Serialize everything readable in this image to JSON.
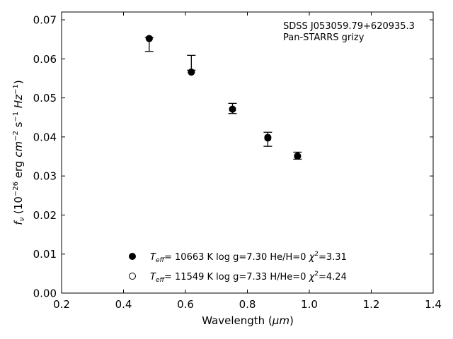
{
  "chart_data": {
    "type": "scatter",
    "annotation_lines": [
      "SDSS J053059.79+620935.3",
      "Pan-STARRS grizy"
    ],
    "xlabel": {
      "main": "Wavelength (",
      "unit": "μm",
      "close": ")"
    },
    "ylabel": {
      "main": "f",
      "sub": "ν",
      "rest": " (10",
      "exp1": "−26",
      "mid": " erg ",
      "cm": "cm",
      "exp2": "−2",
      "s": " s",
      "exp3": "−1",
      "hz": " Hz",
      "exp4": "−1",
      "close": ")"
    },
    "xlim": [
      0.2,
      1.4
    ],
    "ylim": [
      0.0,
      0.072
    ],
    "xticks": [
      0.2,
      0.4,
      0.6,
      0.8,
      1.0,
      1.2,
      1.4
    ],
    "xtick_labels": [
      "0.2",
      "0.4",
      "0.6",
      "0.8",
      "1.0",
      "1.2",
      "1.4"
    ],
    "yticks": [
      0.0,
      0.01,
      0.02,
      0.03,
      0.04,
      0.05,
      0.06,
      0.07
    ],
    "ytick_labels": [
      "0.00",
      "0.01",
      "0.02",
      "0.03",
      "0.04",
      "0.05",
      "0.06",
      "0.07"
    ],
    "observed": {
      "x": [
        0.483,
        0.619,
        0.752,
        0.866,
        0.962
      ],
      "y": [
        0.0637,
        0.059,
        0.0473,
        0.0394,
        0.0352
      ],
      "yerr": [
        0.0018,
        0.0019,
        0.0013,
        0.0018,
        0.0009
      ]
    },
    "series": [
      {
        "marker": "filled",
        "x": [
          0.483,
          0.619,
          0.752,
          0.866,
          0.962
        ],
        "y": [
          0.0652,
          0.0566,
          0.0471,
          0.0397,
          0.0351
        ],
        "legend": {
          "teff_label": "T",
          "teff_sub": "eff",
          "text": "= 10663 K  log g=7.30  He/H=0  ",
          "chi": "χ",
          "chi_exp": "2",
          "chi_val": "=3.31"
        }
      },
      {
        "marker": "open",
        "x": [
          0.483,
          0.619,
          0.752,
          0.866,
          0.962
        ],
        "y": [
          0.0652,
          0.0566,
          0.0471,
          0.0399,
          0.0351
        ],
        "legend": {
          "teff_label": "T",
          "teff_sub": "eff",
          "text": "= 11549 K  log g=7.33  H/He=0  ",
          "chi": "χ",
          "chi_exp": "2",
          "chi_val": "=4.24"
        }
      }
    ],
    "legend_position": "lower-center",
    "grid": false
  }
}
